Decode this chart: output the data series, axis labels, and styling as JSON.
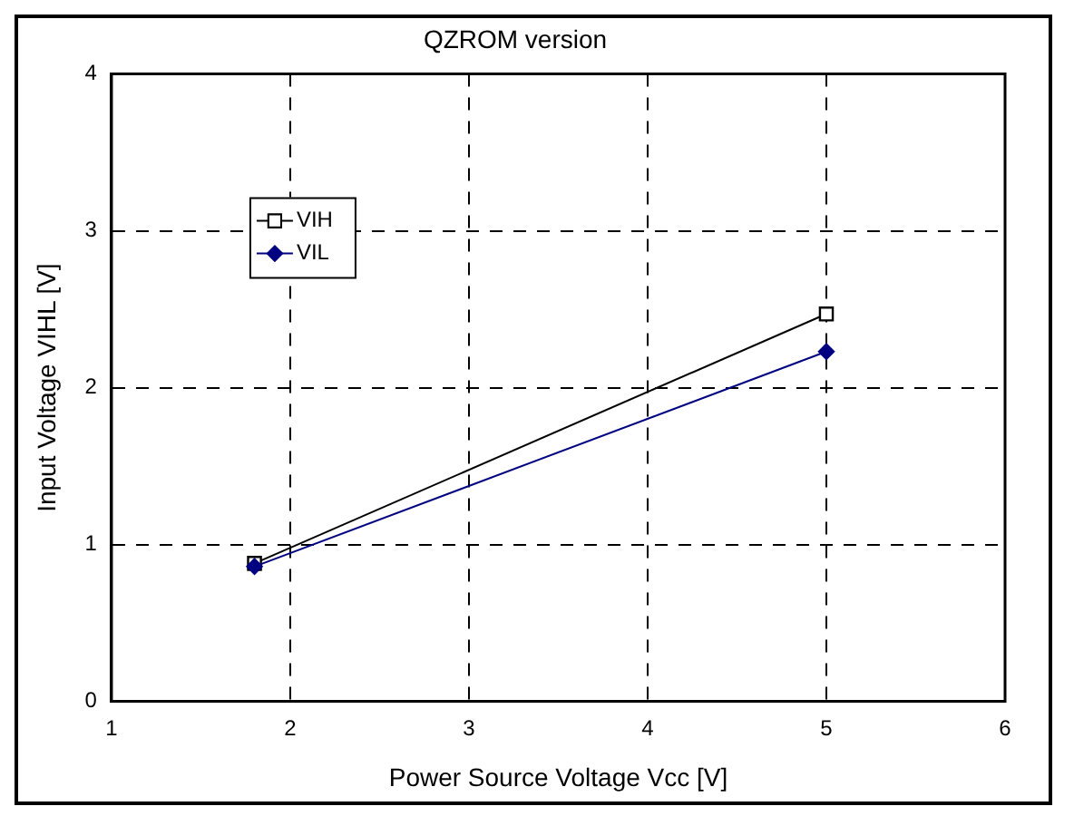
{
  "chart_data": {
    "type": "line",
    "title": "QZROM version",
    "xlabel": "Power Source Voltage Vcc [V]",
    "ylabel": "Input Voltage VIHL [V]",
    "x": [
      1.8,
      5
    ],
    "series": [
      {
        "name": "VIH",
        "color": "#000000",
        "values": [
          0.88,
          2.47
        ],
        "marker": "square"
      },
      {
        "name": "VIL",
        "color": "#000080",
        "values": [
          0.86,
          2.23
        ],
        "marker": "diamond"
      }
    ],
    "xlim": [
      1,
      6
    ],
    "xticks": [
      1,
      2,
      3,
      4,
      5,
      6
    ],
    "ylim": [
      0,
      4
    ],
    "yticks": [
      0,
      1,
      2,
      3,
      4
    ],
    "grid": true,
    "line_style": "solid",
    "legend": "top left"
  }
}
